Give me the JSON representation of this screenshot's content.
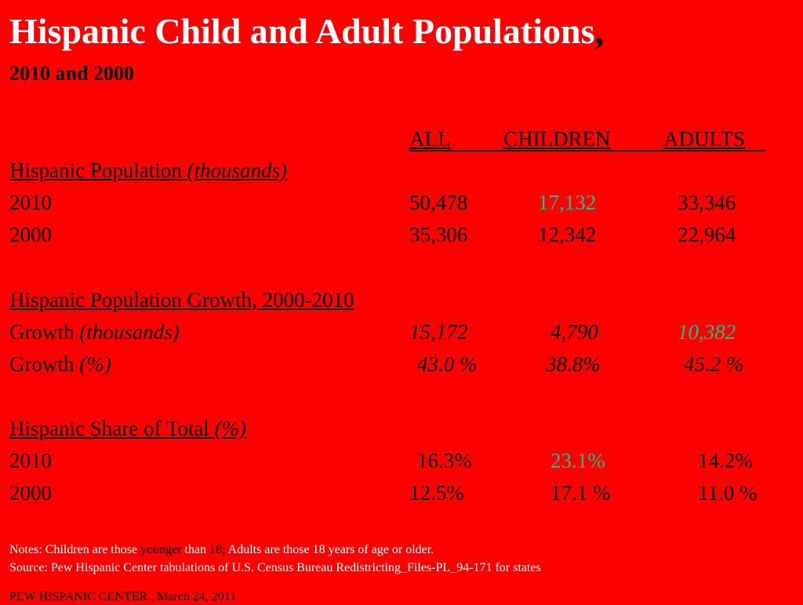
{
  "title": "Hispanic Child and Adult Populations",
  "title_comma": ",",
  "subtitle": "2010 and 2000",
  "columns": [
    "ALL",
    "CHILDREN",
    "ADULTS"
  ],
  "section1": {
    "heading": "Hispanic Population ",
    "heading_italic": "(thousands)",
    "rows": [
      {
        "label": "2010",
        "all": "50,478",
        "children": "17,132",
        "adults": "33,346"
      },
      {
        "label": "2000",
        "all": "35,306",
        "children": "12,342",
        "adults": "22,964"
      }
    ]
  },
  "section2": {
    "heading": "Hispanic Population Growth, 2000-2010 ",
    "rows": [
      {
        "label": "Growth ",
        "label_italic": "(thousands)",
        "all": "15,172",
        "children": "4,790",
        "adults": "10,382"
      },
      {
        "label": "Growth ",
        "label_italic": "(%)",
        "all": "43.0 %",
        "children": "38.8%",
        "adults": "45.2 %"
      }
    ]
  },
  "section3": {
    "heading": "Hispanic Share of Total ",
    "heading_italic": "(%) ",
    "rows": [
      {
        "label": "2010",
        "all": "16.3%",
        "children": "23.1%",
        "adults": "14.2%"
      },
      {
        "label": "2000",
        "all": "12.5%",
        "children": "17.1 %",
        "adults": "11.0 %"
      }
    ]
  },
  "notes": {
    "part1": "Notes: Children are those ",
    "part2": "younger",
    "part3": " than ",
    "part4": "18;",
    "part5": " Adults are those 18 years of age or older.",
    "source": "Source: Pew Hispanic Center tabulations of U.S. Census Bureau Redistricting_Files-PL_94-171 for states",
    "footer": "PEW HISPANIC CENTER , March 24, 2011"
  },
  "colors": {
    "background": "#ff0000",
    "title": "#ffffff",
    "highlight": "#1fc08a"
  }
}
